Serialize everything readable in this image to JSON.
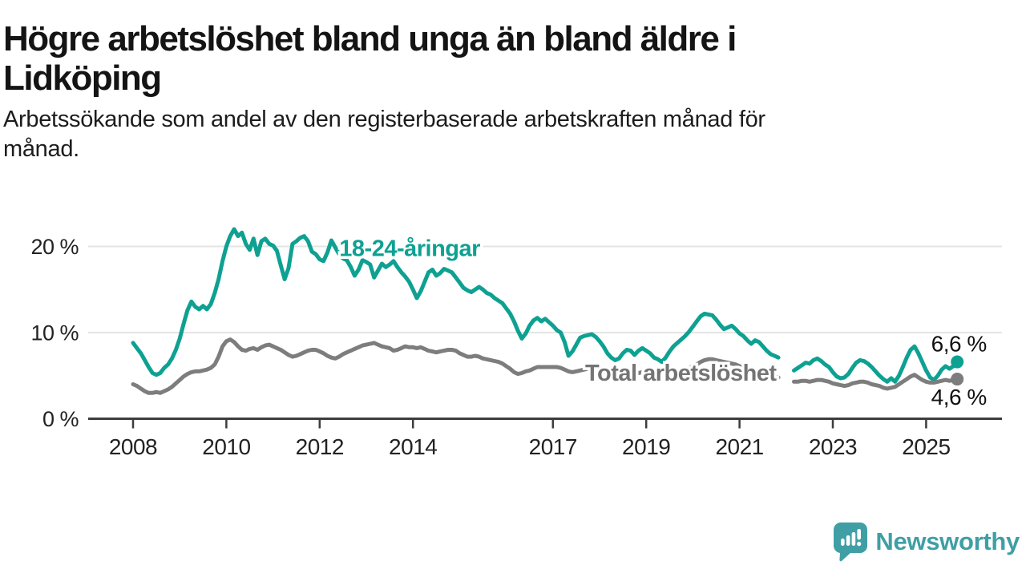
{
  "header": {
    "title_line1": "Högre arbetslöshet bland unga än bland äldre i",
    "title_line2": "Lidköping",
    "subtitle_line1": "Arbetssökande som andel av den registerbaserade arbetskraften månad för",
    "subtitle_line2": "månad."
  },
  "chart_data": {
    "type": "line",
    "title": "Högre arbetslöshet bland unga än bland äldre i Lidköping",
    "xlabel": "",
    "ylabel": "Arbetssökande som andel av den registerbaserade arbetskraften",
    "x_unit": "månad (decimalår)",
    "x_range": [
      2007.05,
      2026.6
    ],
    "ylim": [
      0,
      22.5
    ],
    "grid": "horizontal",
    "x_ticks": [
      2008,
      2010,
      2012,
      2014,
      2017,
      2019,
      2021,
      2023,
      2025
    ],
    "y_ticks": [
      {
        "value": 0,
        "label": "0 %"
      },
      {
        "value": 10,
        "label": "10 %"
      },
      {
        "value": 20,
        "label": "20 %"
      }
    ],
    "colors": {
      "young": "#0ea192",
      "total": "#7d7d7d",
      "axis": "#3d3d3d",
      "grid": "#e4e4e4",
      "tick_text": "#222222",
      "value_text": "#111111"
    },
    "series": [
      {
        "id": "young",
        "name": "18-24-åringar",
        "color": "#0ea192",
        "label_anchor": {
          "x": 2013.93,
          "y": 19.8
        },
        "end_label": "6,6 %",
        "end_value": 6.6,
        "segments": [
          {
            "start": 2008.0,
            "step_months": 1,
            "values": [
              8.8,
              8.2,
              7.6,
              6.8,
              6.0,
              5.3,
              5.1,
              5.3,
              5.9,
              6.3,
              7.0,
              8.0,
              9.3,
              11.0,
              12.6,
              13.6,
              13.0,
              12.7,
              13.1,
              12.7,
              13.3,
              14.6,
              16.2,
              18.3,
              20.0,
              21.2,
              22.0,
              21.2,
              21.6,
              20.3,
              19.6,
              20.9,
              19.0,
              20.6,
              20.9,
              20.3,
              20.1,
              19.5,
              17.8,
              16.2,
              17.5,
              20.3,
              20.6,
              21.0,
              21.2,
              20.6,
              19.4,
              19.1,
              18.5,
              18.3,
              19.3,
              20.7,
              19.9,
              19.1,
              18.6,
              18.4,
              17.6,
              16.6,
              17.3,
              18.4,
              18.2,
              17.9,
              16.4,
              17.2,
              18.0,
              17.6,
              17.9,
              18.3,
              17.6,
              17.0,
              16.5,
              15.9,
              15.0,
              14.0,
              14.8,
              15.9,
              17.0,
              17.3,
              16.6,
              16.9,
              17.4,
              17.2,
              17.0,
              16.4,
              15.8,
              15.2,
              14.9,
              14.7,
              15.0,
              15.3,
              15.0,
              14.6,
              14.4,
              14.0,
              13.7,
              13.4,
              12.8,
              12.2,
              11.3,
              10.2,
              9.3,
              9.9,
              10.8,
              11.4,
              11.7,
              11.3,
              11.6,
              11.2,
              10.8,
              10.3,
              10.0,
              8.9,
              7.3,
              7.8,
              8.6,
              9.4,
              9.6,
              9.7,
              9.8,
              9.5,
              9.0,
              8.4,
              7.6,
              7.1,
              6.8,
              7.0,
              7.6,
              8.0,
              7.9,
              7.4,
              7.9,
              8.2,
              7.9,
              7.6,
              7.1,
              6.9,
              6.6,
              7.1,
              7.8,
              8.4,
              8.8,
              9.2,
              9.6,
              10.1,
              10.7,
              11.3,
              11.9,
              12.2,
              12.1,
              12.0,
              11.5,
              10.9,
              10.4,
              10.6,
              10.8,
              10.4,
              9.9,
              9.6,
              9.1,
              8.7,
              9.1,
              8.9,
              8.4,
              7.9,
              7.5,
              7.3,
              7.1
            ]
          },
          {
            "start": 2022.1667,
            "step_months": 1,
            "values": [
              5.6,
              5.9,
              6.2,
              6.5,
              6.4,
              6.8,
              7.0,
              6.7,
              6.3,
              6.0,
              5.4,
              4.9,
              4.7,
              4.8,
              5.2,
              5.9,
              6.5,
              6.8,
              6.7,
              6.4,
              6.0,
              5.5,
              5.0,
              4.6,
              4.3,
              4.7,
              4.3,
              5.0,
              6.0,
              7.1,
              8.0,
              8.4,
              7.6,
              6.6,
              5.6,
              4.8,
              4.5,
              5.0,
              5.7,
              6.1,
              5.8,
              6.1,
              6.6
            ]
          }
        ]
      },
      {
        "id": "total",
        "name": "Total arbetslöshet",
        "color": "#7d7d7d",
        "label_color": "#747474",
        "label_anchor": {
          "x": 2019.74,
          "y": 5.35
        },
        "end_label": "4,6 %",
        "end_value": 4.6,
        "segments": [
          {
            "start": 2008.0,
            "step_months": 1,
            "values": [
              4.0,
              3.8,
              3.5,
              3.2,
              3.0,
              3.0,
              3.1,
              3.0,
              3.2,
              3.4,
              3.7,
              4.1,
              4.5,
              4.9,
              5.2,
              5.4,
              5.5,
              5.5,
              5.6,
              5.7,
              5.9,
              6.3,
              7.2,
              8.4,
              9.0,
              9.2,
              8.9,
              8.4,
              8.0,
              7.9,
              8.1,
              8.2,
              8.0,
              8.3,
              8.5,
              8.6,
              8.4,
              8.2,
              8.0,
              7.7,
              7.4,
              7.2,
              7.3,
              7.5,
              7.7,
              7.9,
              8.0,
              8.0,
              7.8,
              7.6,
              7.3,
              7.1,
              7.0,
              7.2,
              7.5,
              7.7,
              7.9,
              8.1,
              8.3,
              8.5,
              8.6,
              8.7,
              8.8,
              8.6,
              8.4,
              8.3,
              8.2,
              7.9,
              8.0,
              8.2,
              8.4,
              8.3,
              8.3,
              8.2,
              8.3,
              8.1,
              7.9,
              7.8,
              7.7,
              7.8,
              7.9,
              8.0,
              8.0,
              7.9,
              7.6,
              7.4,
              7.2,
              7.2,
              7.3,
              7.2,
              7.0,
              6.9,
              6.8,
              6.7,
              6.6,
              6.4,
              6.1,
              5.8,
              5.4,
              5.2,
              5.3,
              5.5,
              5.6,
              5.8,
              6.0,
              6.0,
              6.0,
              6.0,
              6.0,
              6.0,
              5.9,
              5.7,
              5.5,
              5.4,
              5.5,
              5.6,
              5.7,
              5.8,
              5.8,
              5.7,
              5.6,
              5.4,
              5.2,
              5.1,
              5.0,
              5.1,
              5.2,
              5.3,
              5.3,
              5.2,
              5.3,
              5.4,
              5.3,
              5.2,
              5.1,
              5.0,
              5.0,
              5.1,
              5.3,
              5.4,
              5.5,
              5.6,
              5.7,
              5.9,
              6.1,
              6.3,
              6.6,
              6.8,
              6.9,
              6.9,
              6.8,
              6.7,
              6.6,
              6.5,
              6.4,
              6.3,
              6.1,
              5.9,
              5.7,
              5.5,
              5.4,
              5.3,
              5.2,
              5.1,
              5.0,
              4.9,
              4.8
            ]
          },
          {
            "start": 2022.1667,
            "step_months": 1,
            "values": [
              4.3,
              4.3,
              4.4,
              4.4,
              4.3,
              4.4,
              4.5,
              4.5,
              4.4,
              4.3,
              4.1,
              4.0,
              3.9,
              3.8,
              3.9,
              4.1,
              4.2,
              4.3,
              4.3,
              4.2,
              4.0,
              3.9,
              3.8,
              3.6,
              3.5,
              3.6,
              3.7,
              4.0,
              4.3,
              4.6,
              4.9,
              5.1,
              4.8,
              4.5,
              4.3,
              4.2,
              4.2,
              4.3,
              4.4,
              4.5,
              4.4,
              4.5,
              4.6
            ]
          }
        ]
      }
    ]
  },
  "footer": {
    "brand": "Newsworthy",
    "brand_color": "#3f9fa5"
  }
}
